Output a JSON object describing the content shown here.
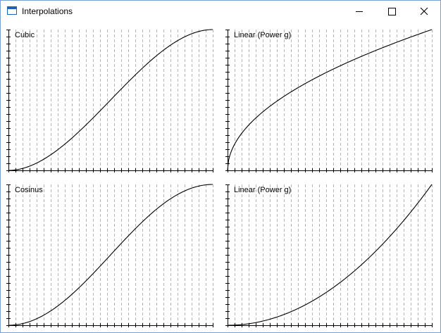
{
  "window": {
    "title": "Interpolations",
    "app_icon": "window-icon",
    "controls": [
      "minimize-icon",
      "maximize-icon",
      "close-icon"
    ]
  },
  "plots": [
    {
      "label": "Cubic",
      "curve": "cubic"
    },
    {
      "label": "Linear (Power g)",
      "curve": "power",
      "gamma": 0.5
    },
    {
      "label": "Cosinus",
      "curve": "cosine"
    },
    {
      "label": "Linear (Power g)",
      "curve": "power",
      "gamma": 2
    }
  ],
  "colors": {
    "curve": "#000000",
    "axis": "#000000",
    "grid": "#b4b4b4"
  }
}
